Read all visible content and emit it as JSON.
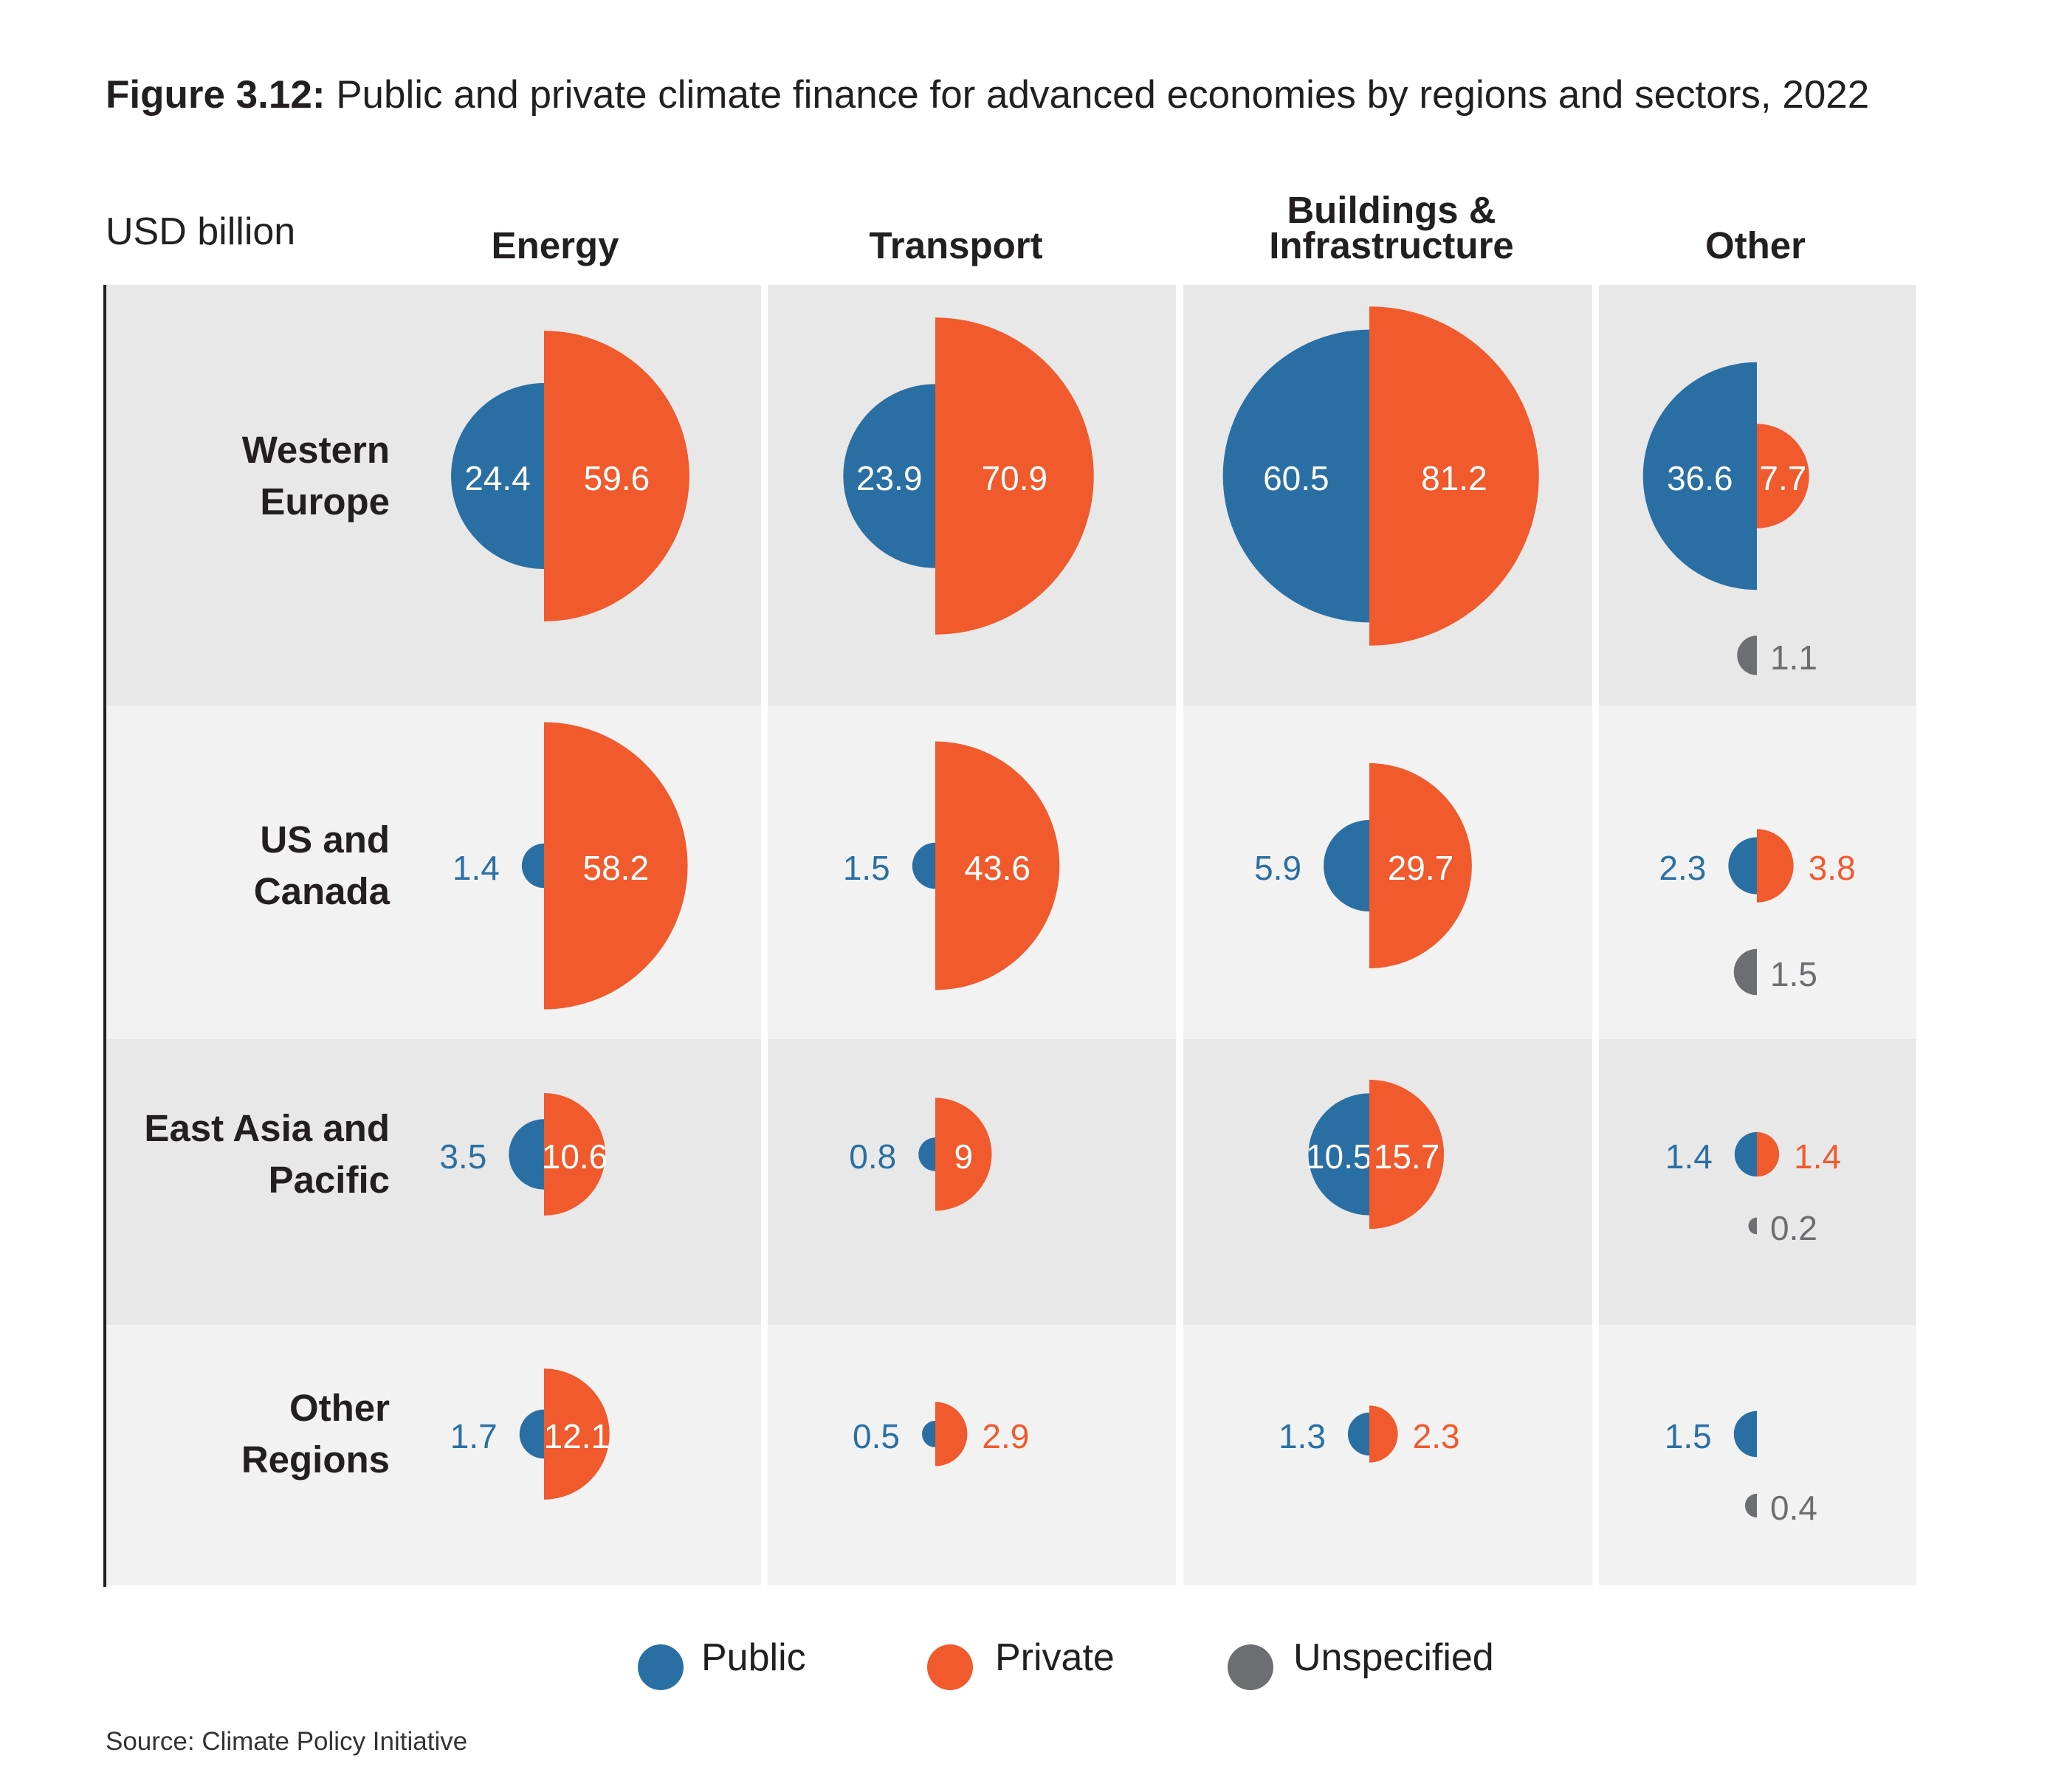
{
  "title_prefix": "Figure 3.12:",
  "title_text": " Public and private climate finance for advanced economies by regions and sectors, 2022",
  "units": "USD billion",
  "source": "Source: Climate Policy Initiative",
  "colors": {
    "public": "#2a6fa3",
    "private": "#f05a2c",
    "unspecified": "#6d6e71",
    "row_dark": "#e8e8e8",
    "row_light": "#f2f2f2"
  },
  "legend": [
    {
      "key": "public",
      "label": "Public"
    },
    {
      "key": "private",
      "label": "Private"
    },
    {
      "key": "unspecified",
      "label": "Unspecified"
    }
  ],
  "chart_data": {
    "type": "proportional-half-circle-grid",
    "columns": [
      "Energy",
      "Transport",
      "Buildings & Infrastructure",
      "Other"
    ],
    "rows": [
      "Western Europe",
      "US and Canada",
      "East Asia and Pacific",
      "Other Regions"
    ],
    "cells": [
      [
        {
          "public": 24.4,
          "private": 59.6
        },
        {
          "public": 23.9,
          "private": 70.9
        },
        {
          "public": 60.5,
          "private": 81.2
        },
        {
          "public": 36.6,
          "private": 7.7,
          "unspecified": 1.1
        }
      ],
      [
        {
          "public": 1.4,
          "private": 58.2
        },
        {
          "public": 1.5,
          "private": 43.6
        },
        {
          "public": 5.9,
          "private": 29.7
        },
        {
          "public": 2.3,
          "private": 3.8,
          "unspecified": 1.5
        }
      ],
      [
        {
          "public": 3.5,
          "private": 10.6
        },
        {
          "public": 0.8,
          "private": 9
        },
        {
          "public": 10.5,
          "private": 15.7
        },
        {
          "public": 1.4,
          "private": 1.4,
          "unspecified": 0.2
        }
      ],
      [
        {
          "public": 1.7,
          "private": 12.1
        },
        {
          "public": 0.5,
          "private": 2.9
        },
        {
          "public": 1.3,
          "private": 2.3
        },
        {
          "public": 1.5,
          "unspecified": 0.4
        }
      ]
    ]
  }
}
